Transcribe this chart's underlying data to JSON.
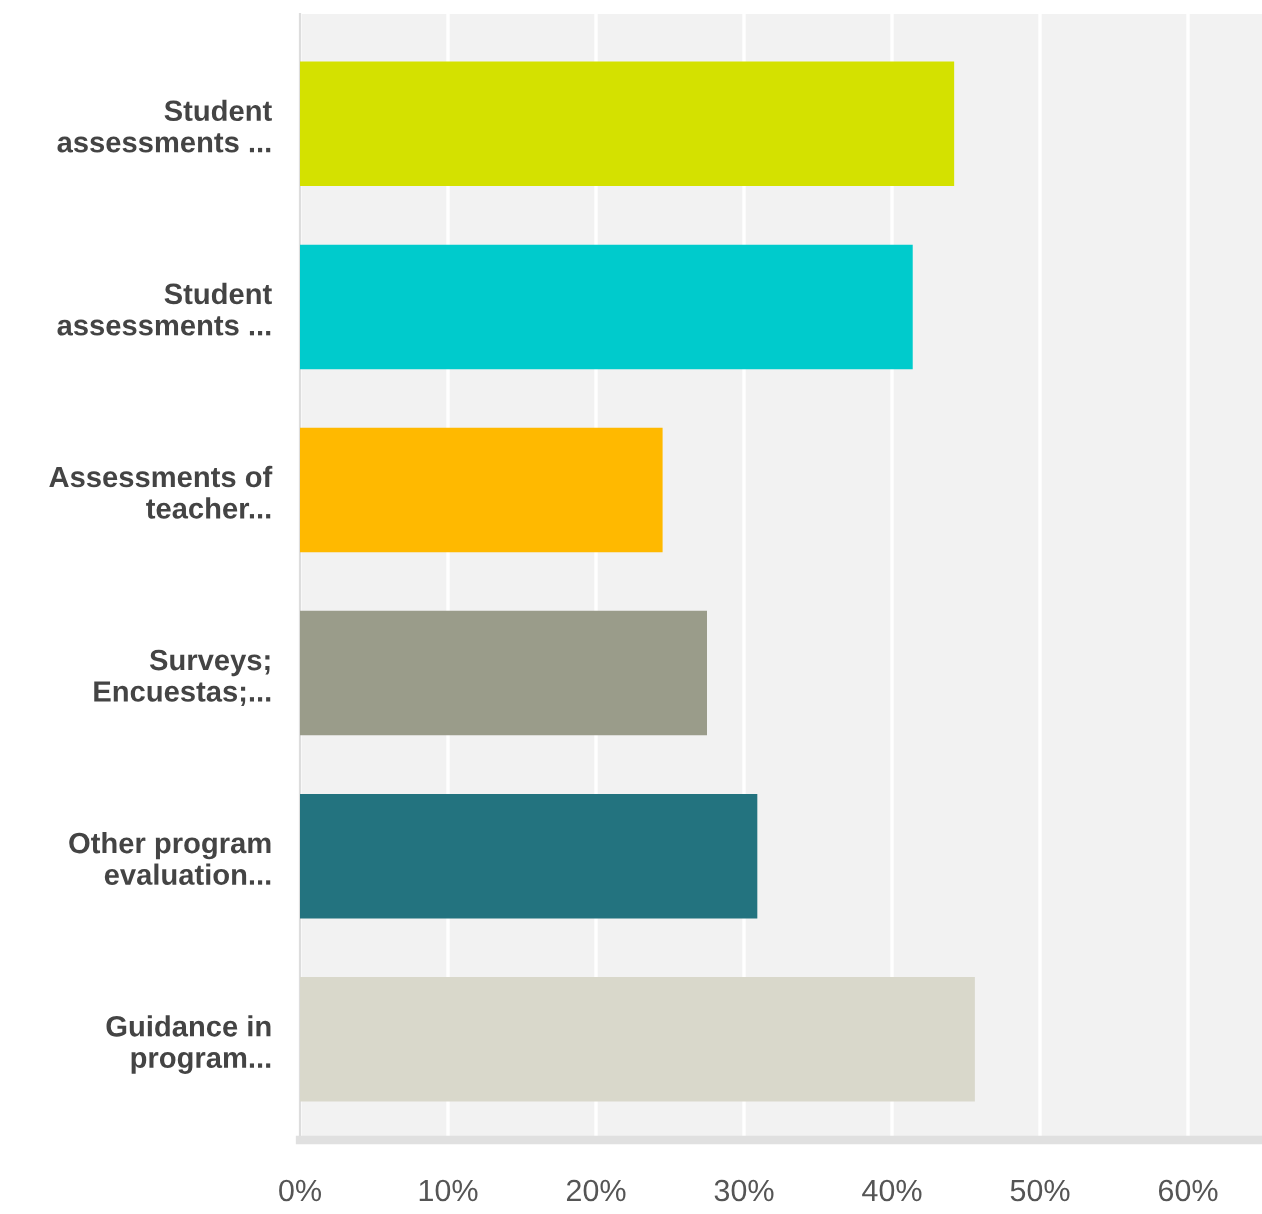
{
  "chart_data": {
    "type": "bar",
    "orientation": "horizontal",
    "categories": [
      "Student\nassessments ...",
      "Student\nassessments ...",
      "Assessments of\nteacher...",
      "Surveys;\nEncuestas;...",
      "Other program\nevaluation...",
      "Guidance in\nprogram..."
    ],
    "values": [
      44.2,
      41.4,
      24.5,
      27.5,
      30.9,
      45.6
    ],
    "colors": [
      "#d4e100",
      "#00cbcc",
      "#ffb900",
      "#9a9c8a",
      "#23737f",
      "#d9d8cb"
    ],
    "xlim": [
      0,
      65
    ],
    "xticks": [
      {
        "value": 0,
        "label": "0%"
      },
      {
        "value": 10,
        "label": "10%"
      },
      {
        "value": 20,
        "label": "20%"
      },
      {
        "value": 30,
        "label": "30%"
      },
      {
        "value": 40,
        "label": "40%"
      },
      {
        "value": 50,
        "label": "50%"
      },
      {
        "value": 60,
        "label": "60%"
      }
    ],
    "grid": "x",
    "legend": false
  }
}
